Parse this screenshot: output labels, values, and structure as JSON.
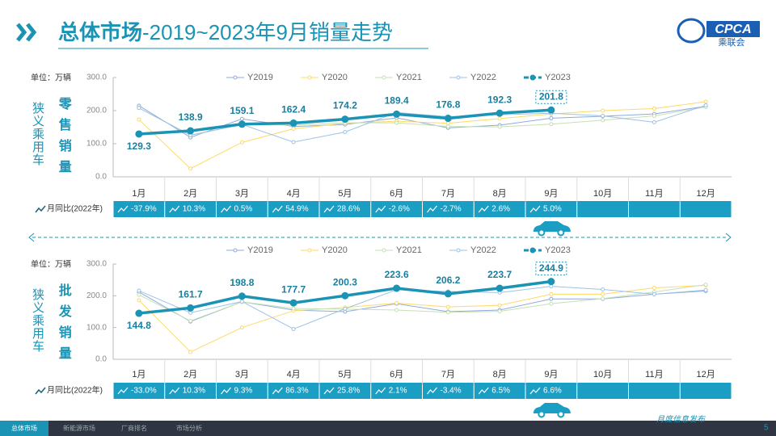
{
  "header": {
    "title_main": "总体市场",
    "title_rest": "-2019~2023年9月销量走势"
  },
  "logo": {
    "text": "CPCA",
    "subtext": "乘联会"
  },
  "chart_data": [
    {
      "type": "line",
      "unit": "单位：万辆",
      "y_title": "狭义乘用车",
      "y_title2": "零售销量",
      "categories": [
        "1月",
        "2月",
        "3月",
        "4月",
        "5月",
        "6月",
        "7月",
        "8月",
        "9月",
        "10月",
        "11月",
        "12月"
      ],
      "ylim": [
        0,
        300
      ],
      "yticks": [
        {
          "value": 0,
          "label": "0.0"
        },
        {
          "value": 100,
          "label": "100.0"
        },
        {
          "value": 200,
          "label": "200.0"
        },
        {
          "value": 300,
          "label": "300.0"
        }
      ],
      "series": [
        {
          "name": "Y2019",
          "color": "#8faadc",
          "values": [
            215,
            119,
            175,
            152,
            158,
            178,
            148,
            156,
            177,
            183,
            190,
            213
          ]
        },
        {
          "name": "Y2020",
          "color": "#ffd966",
          "values": [
            173,
            25,
            104,
            145,
            162,
            168,
            162,
            176,
            190,
            200,
            206,
            227
          ]
        },
        {
          "name": "Y2021",
          "color": "#c5e0b4",
          "values": [
            208,
            125,
            158,
            156,
            163,
            163,
            152,
            151,
            159,
            171,
            184,
            211
          ]
        },
        {
          "name": "Y2022",
          "color": "#9dc3e6",
          "values": [
            208.2,
            126,
            158.3,
            104.9,
            135.4,
            194.4,
            181.7,
            187.4,
            192.2,
            184,
            165,
            216
          ]
        },
        {
          "name": "Y2023",
          "color": "#1a93b5",
          "values": [
            129.3,
            138.9,
            159.1,
            162.4,
            174.2,
            189.4,
            176.8,
            192.3,
            201.8,
            null,
            null,
            null
          ]
        }
      ],
      "yoy_label": "月同比(2022年)",
      "yoy": [
        "-37.9%",
        "10.3%",
        "0.5%",
        "54.9%",
        "28.6%",
        "-2.6%",
        "-2.7%",
        "2.6%",
        "5.0%"
      ]
    },
    {
      "type": "line",
      "unit": "单位：万辆",
      "y_title": "狭义乘用车",
      "y_title2": "批发销量",
      "categories": [
        "1月",
        "2月",
        "3月",
        "4月",
        "5月",
        "6月",
        "7月",
        "8月",
        "9月",
        "10月",
        "11月",
        "12月"
      ],
      "ylim": [
        0,
        300
      ],
      "yticks": [
        {
          "value": 0,
          "label": "0.0"
        },
        {
          "value": 100,
          "label": "100.0"
        },
        {
          "value": 200,
          "label": "200.0"
        },
        {
          "value": 300,
          "label": "300.0"
        }
      ],
      "series": [
        {
          "name": "Y2019",
          "color": "#8faadc",
          "values": [
            212,
            119,
            181,
            155,
            150,
            175,
            150,
            155,
            190,
            190,
            205,
            215
          ]
        },
        {
          "name": "Y2020",
          "color": "#ffd966",
          "values": [
            186,
            23,
            100,
            153,
            163,
            177,
            165,
            170,
            205,
            205,
            225,
            233
          ]
        },
        {
          "name": "Y2021",
          "color": "#c5e0b4",
          "values": [
            203,
            121,
            181,
            160,
            158,
            155,
            148,
            151,
            175,
            191,
            212,
            235
          ]
        },
        {
          "name": "Y2022",
          "color": "#9dc3e6",
          "values": [
            216,
            146.6,
            181.9,
            95.4,
            159.2,
            219,
            213.5,
            210,
            229.7,
            220,
            205,
            218
          ]
        },
        {
          "name": "Y2023",
          "color": "#1a93b5",
          "values": [
            144.8,
            161.7,
            198.8,
            177.7,
            200.3,
            223.6,
            206.2,
            223.7,
            244.9,
            null,
            null,
            null
          ]
        }
      ],
      "yoy_label": "月同比(2022年)",
      "yoy": [
        "-33.0%",
        "10.3%",
        "9.3%",
        "86.3%",
        "25.8%",
        "2.1%",
        "-3.4%",
        "6.5%",
        "6.6%"
      ]
    }
  ],
  "footer": {
    "tabs": [
      "总体市场",
      "新能源市场",
      "厂商排名",
      "市场分析"
    ],
    "note": "月度信息发布",
    "page": "5"
  }
}
